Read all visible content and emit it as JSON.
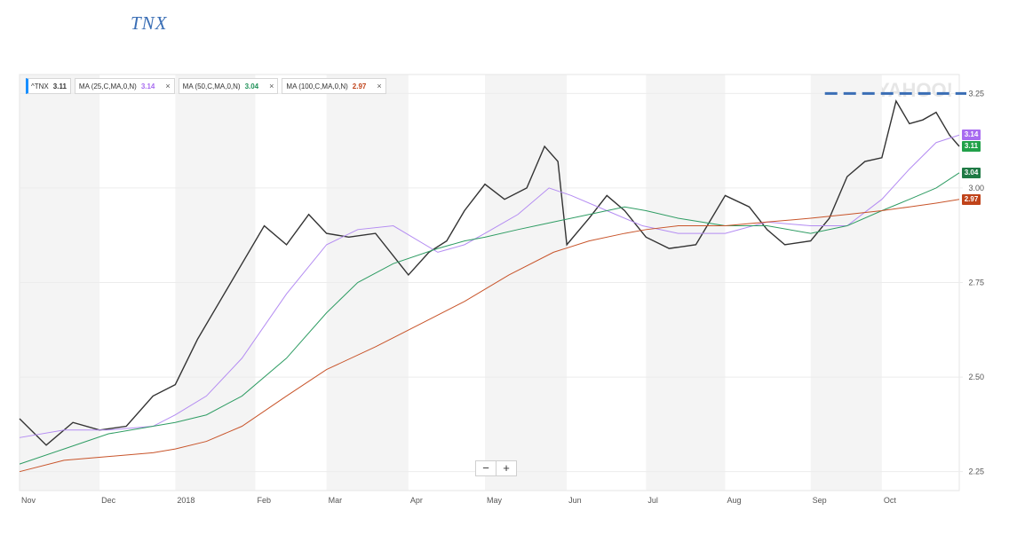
{
  "title": "TNX",
  "watermark": "YAHOO!",
  "legend": [
    {
      "label": "^TNX",
      "value": "3.11",
      "color": "#333333",
      "closable": false
    },
    {
      "label": "MA (25,C,MA,0,N)",
      "value": "3.14",
      "color": "#a86cf0",
      "closable": true
    },
    {
      "label": "MA (50,C,MA,0,N)",
      "value": "3.04",
      "color": "#22925a",
      "closable": true
    },
    {
      "label": "MA (100,C,MA,0,N)",
      "value": "2.97",
      "color": "#c0431a",
      "closable": true
    }
  ],
  "zoom": {
    "minus": "−",
    "plus": "+"
  },
  "price_tags": [
    {
      "value": "3.14",
      "color": "#a86cf0"
    },
    {
      "value": "3.11",
      "color": "#22a14a"
    },
    {
      "value": "3.04",
      "color": "#1f7a45"
    },
    {
      "value": "2.97",
      "color": "#c0431a"
    }
  ],
  "chart_data": {
    "type": "line",
    "ylim": [
      2.2,
      3.3
    ],
    "y_ticks": [
      "2.25",
      "2.50",
      "2.75",
      "3.00",
      "3.25"
    ],
    "x_ticks": [
      "Nov",
      "Dec",
      "2018",
      "Feb",
      "Mar",
      "Apr",
      "May",
      "Jun",
      "Jul",
      "Aug",
      "Sep",
      "Oct"
    ],
    "x_tick_days": [
      0,
      90,
      175,
      265,
      345,
      437,
      523,
      615,
      704,
      793,
      889,
      969
    ],
    "total_days": 1056,
    "reference_line": 3.25,
    "series": [
      {
        "name": "^TNX",
        "color": "#333333",
        "x": [
          0,
          30,
          60,
          90,
          120,
          150,
          175,
          200,
          225,
          250,
          275,
          300,
          325,
          345,
          370,
          400,
          437,
          460,
          480,
          500,
          523,
          545,
          570,
          590,
          605,
          615,
          640,
          660,
          680,
          704,
          730,
          760,
          793,
          820,
          840,
          860,
          889,
          910,
          930,
          950,
          969,
          985,
          1000,
          1015,
          1030,
          1045,
          1056
        ],
        "values": [
          2.39,
          2.32,
          2.38,
          2.36,
          2.37,
          2.45,
          2.48,
          2.6,
          2.7,
          2.8,
          2.9,
          2.85,
          2.93,
          2.88,
          2.87,
          2.88,
          2.77,
          2.83,
          2.86,
          2.94,
          3.01,
          2.97,
          3.0,
          3.11,
          3.07,
          2.85,
          2.92,
          2.98,
          2.94,
          2.87,
          2.84,
          2.85,
          2.98,
          2.95,
          2.89,
          2.85,
          2.86,
          2.92,
          3.03,
          3.07,
          3.08,
          3.23,
          3.17,
          3.18,
          3.2,
          3.14,
          3.11
        ]
      },
      {
        "name": "MA (25,C,MA,0,N)",
        "color": "#b48cf2",
        "x": [
          0,
          50,
          100,
          150,
          175,
          210,
          250,
          300,
          345,
          380,
          420,
          470,
          500,
          523,
          560,
          595,
          620,
          660,
          700,
          740,
          793,
          840,
          889,
          930,
          969,
          1000,
          1030,
          1056
        ],
        "values": [
          2.34,
          2.36,
          2.36,
          2.37,
          2.4,
          2.45,
          2.55,
          2.72,
          2.85,
          2.89,
          2.9,
          2.83,
          2.85,
          2.88,
          2.93,
          3.0,
          2.98,
          2.94,
          2.9,
          2.88,
          2.88,
          2.91,
          2.9,
          2.9,
          2.97,
          3.05,
          3.12,
          3.14
        ]
      },
      {
        "name": "MA (50,C,MA,0,N)",
        "color": "#2e9c63",
        "x": [
          0,
          50,
          100,
          150,
          175,
          210,
          250,
          300,
          345,
          380,
          420,
          470,
          500,
          523,
          560,
          600,
          640,
          680,
          704,
          740,
          793,
          840,
          889,
          930,
          969,
          1000,
          1030,
          1056
        ],
        "values": [
          2.27,
          2.31,
          2.35,
          2.37,
          2.38,
          2.4,
          2.45,
          2.55,
          2.67,
          2.75,
          2.8,
          2.84,
          2.86,
          2.87,
          2.89,
          2.91,
          2.93,
          2.95,
          2.94,
          2.92,
          2.9,
          2.9,
          2.88,
          2.9,
          2.94,
          2.97,
          3.0,
          3.04
        ]
      },
      {
        "name": "MA (100,C,MA,0,N)",
        "color": "#c8542a",
        "x": [
          0,
          50,
          100,
          150,
          175,
          210,
          250,
          300,
          345,
          400,
          450,
          500,
          550,
          600,
          640,
          680,
          704,
          740,
          793,
          840,
          889,
          930,
          969,
          1000,
          1030,
          1056
        ],
        "values": [
          2.25,
          2.28,
          2.29,
          2.3,
          2.31,
          2.33,
          2.37,
          2.45,
          2.52,
          2.58,
          2.64,
          2.7,
          2.77,
          2.83,
          2.86,
          2.88,
          2.89,
          2.9,
          2.9,
          2.91,
          2.92,
          2.93,
          2.94,
          2.95,
          2.96,
          2.97
        ]
      }
    ]
  }
}
